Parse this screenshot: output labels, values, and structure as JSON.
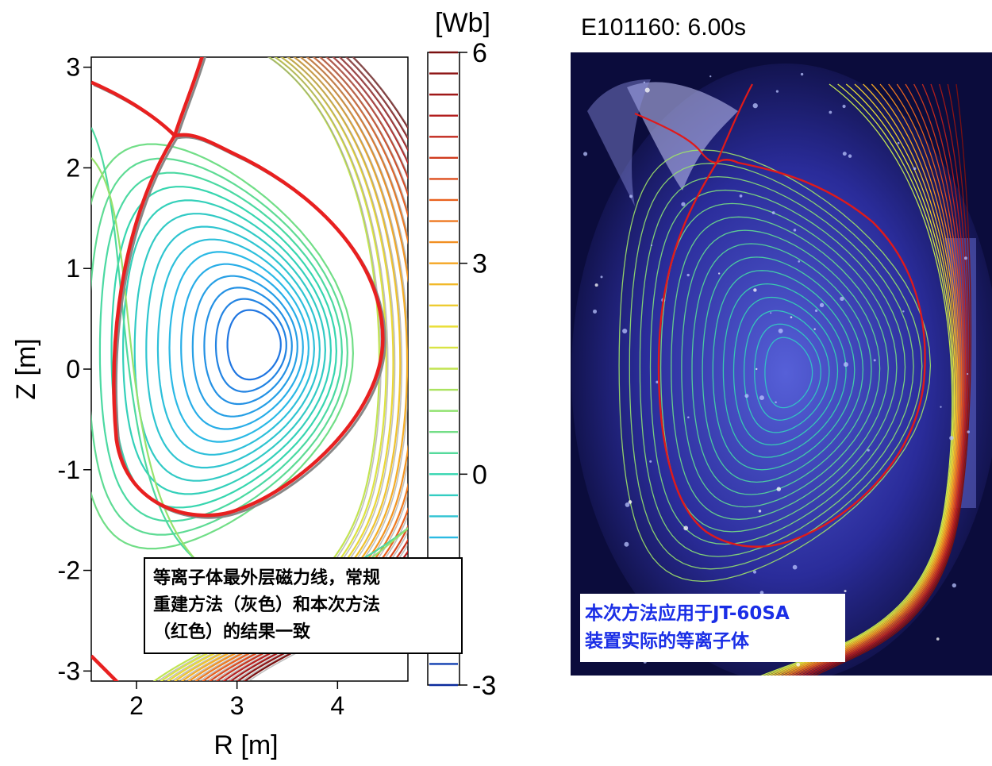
{
  "chart_data": [
    {
      "type": "contour",
      "xlabel": "R [m]",
      "ylabel": "Z [m]",
      "xlim": [
        1.55,
        4.7
      ],
      "ylim": [
        -3.1,
        3.1
      ],
      "x_ticks": [
        2,
        3,
        4
      ],
      "y_ticks": [
        3,
        2,
        1,
        0,
        -1,
        -2,
        -3
      ],
      "magnetic_axis": {
        "R": 3.2,
        "Z": 0.25
      },
      "flux_surfaces": 14,
      "colorbar": {
        "label": "[Wb]",
        "range": [
          -3,
          6
        ],
        "ticks": [
          6,
          3,
          0,
          -3
        ],
        "colors": [
          "#0a2a9c",
          "#1f6fe0",
          "#2ab7e8",
          "#36d6b0",
          "#9be36a",
          "#e8e43a",
          "#f5a623",
          "#e85a1e",
          "#b81e1e",
          "#7a1010"
        ]
      },
      "series": [
        {
          "name": "",
          "color": "#e82020"
        },
        {
          "name": "",
          "color": "#888888"
        }
      ],
      "annotation": {
        "lines": [
          "等离子体最外层磁力线，常规",
          "重建方法（灰色）和本次方法",
          "（红色）的结果一致"
        ]
      }
    }
  ],
  "photo": {
    "title": "E101160: 6.00s",
    "label_lines": [
      "本次方法应用于JT-60SA",
      "装置实际的等离子体"
    ]
  }
}
